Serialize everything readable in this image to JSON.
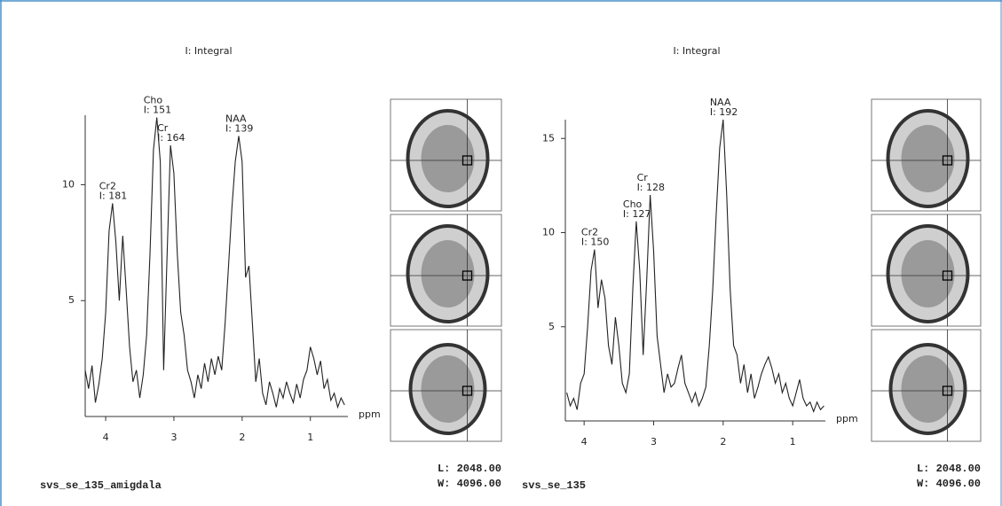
{
  "chart_data": [
    {
      "type": "line",
      "title": "I: Integral",
      "xlabel": "ppm",
      "color": "#222222",
      "x": [
        4.3,
        4.25,
        4.2,
        4.15,
        4.1,
        4.05,
        4.0,
        3.95,
        3.9,
        3.85,
        3.8,
        3.75,
        3.7,
        3.65,
        3.6,
        3.55,
        3.5,
        3.45,
        3.4,
        3.35,
        3.3,
        3.25,
        3.2,
        3.15,
        3.1,
        3.05,
        3.0,
        2.95,
        2.9,
        2.85,
        2.8,
        2.75,
        2.7,
        2.65,
        2.6,
        2.55,
        2.5,
        2.45,
        2.4,
        2.35,
        2.3,
        2.25,
        2.2,
        2.15,
        2.1,
        2.05,
        2.0,
        1.95,
        1.9,
        1.85,
        1.8,
        1.75,
        1.7,
        1.65,
        1.6,
        1.55,
        1.5,
        1.45,
        1.4,
        1.35,
        1.3,
        1.25,
        1.2,
        1.15,
        1.1,
        1.05,
        1.0,
        0.95,
        0.9,
        0.85,
        0.8,
        0.75,
        0.7,
        0.65,
        0.6,
        0.55,
        0.5
      ],
      "values": [
        2.0,
        1.2,
        2.2,
        0.6,
        1.4,
        2.5,
        4.5,
        8.0,
        9.2,
        7.5,
        5.0,
        7.8,
        5.5,
        3.0,
        1.5,
        2.0,
        0.8,
        1.8,
        3.5,
        7.0,
        11.5,
        12.9,
        11.0,
        2.0,
        7.0,
        11.7,
        10.5,
        7.0,
        4.5,
        3.5,
        2.0,
        1.5,
        0.8,
        1.8,
        1.2,
        2.3,
        1.5,
        2.5,
        1.8,
        2.6,
        2.0,
        4.0,
        6.5,
        9.0,
        11.0,
        12.1,
        11.0,
        6.0,
        6.5,
        4.0,
        1.5,
        2.5,
        1.0,
        0.5,
        1.5,
        1.0,
        0.4,
        1.2,
        0.8,
        1.5,
        1.0,
        0.6,
        1.4,
        0.8,
        1.6,
        2.0,
        3.0,
        2.5,
        1.8,
        2.4,
        1.2,
        1.6,
        0.7,
        1.0,
        0.4,
        0.8,
        0.5
      ],
      "xlim": [
        4.3,
        0.45
      ],
      "ylim": [
        0,
        13
      ],
      "xticks": [
        4,
        3,
        2,
        1
      ],
      "yticks": [
        5,
        10
      ],
      "annotations": [
        {
          "lines": [
            "Cr2",
            "I: 181"
          ],
          "x": 3.9
        },
        {
          "lines": [
            "Cho",
            "I: 151"
          ],
          "x": 3.25
        },
        {
          "lines": [
            "Cr",
            "I: 164"
          ],
          "x": 3.05
        },
        {
          "lines": [
            "NAA",
            "I: 139"
          ],
          "x": 2.05
        }
      ],
      "info": {
        "name": "svs_se_135_amigdala",
        "level": "L: 2048.00",
        "width": "W: 4096.00"
      }
    },
    {
      "type": "line",
      "title": "I: Integral",
      "xlabel": "ppm",
      "color": "#222222",
      "x": [
        4.25,
        4.2,
        4.15,
        4.1,
        4.05,
        4.0,
        3.95,
        3.9,
        3.85,
        3.8,
        3.75,
        3.7,
        3.65,
        3.6,
        3.55,
        3.5,
        3.45,
        3.4,
        3.35,
        3.3,
        3.25,
        3.2,
        3.15,
        3.1,
        3.05,
        3.0,
        2.95,
        2.9,
        2.85,
        2.8,
        2.75,
        2.7,
        2.65,
        2.6,
        2.55,
        2.5,
        2.45,
        2.4,
        2.35,
        2.3,
        2.25,
        2.2,
        2.15,
        2.1,
        2.05,
        2.0,
        1.95,
        1.9,
        1.85,
        1.8,
        1.75,
        1.7,
        1.65,
        1.6,
        1.55,
        1.5,
        1.45,
        1.4,
        1.35,
        1.3,
        1.25,
        1.2,
        1.15,
        1.1,
        1.05,
        1.0,
        0.95,
        0.9,
        0.85,
        0.8,
        0.75,
        0.7,
        0.65,
        0.6,
        0.55
      ],
      "values": [
        1.5,
        0.8,
        1.2,
        0.6,
        2.0,
        2.5,
        5.0,
        8.0,
        9.1,
        6.0,
        7.5,
        6.5,
        4.0,
        3.0,
        5.5,
        4.0,
        2.0,
        1.5,
        2.5,
        7.0,
        10.6,
        8.0,
        3.5,
        7.5,
        12.0,
        9.0,
        4.5,
        3.0,
        1.5,
        2.5,
        1.8,
        2.0,
        2.8,
        3.5,
        2.0,
        1.5,
        1.0,
        1.5,
        0.8,
        1.2,
        1.8,
        4.0,
        7.0,
        11.0,
        14.5,
        16.0,
        12.0,
        7.0,
        4.0,
        3.5,
        2.0,
        3.0,
        1.5,
        2.5,
        1.2,
        1.8,
        2.5,
        3.0,
        3.4,
        2.8,
        2.0,
        2.5,
        1.5,
        2.0,
        1.2,
        0.8,
        1.5,
        2.2,
        1.2,
        0.8,
        1.0,
        0.5,
        1.0,
        0.6,
        0.8
      ],
      "xlim": [
        4.27,
        0.53
      ],
      "ylim": [
        0,
        16
      ],
      "xticks": [
        4,
        3,
        2,
        1
      ],
      "yticks": [
        5,
        10,
        15
      ],
      "annotations": [
        {
          "lines": [
            "Cr2",
            "I: 150"
          ],
          "x": 3.85
        },
        {
          "lines": [
            "Cho",
            "I: 127"
          ],
          "x": 3.25
        },
        {
          "lines": [
            "Cr",
            "I: 128"
          ],
          "x": 3.05
        },
        {
          "lines": [
            "NAA",
            "I: 192"
          ],
          "x": 2.0
        }
      ],
      "info": {
        "name": "svs_se_135",
        "level": "L: 2048.00",
        "width": "W: 4096.00"
      }
    }
  ]
}
